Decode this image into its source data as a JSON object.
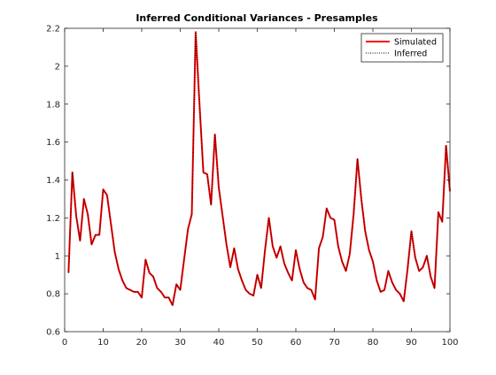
{
  "chart_data": {
    "type": "line",
    "title": "Inferred Conditional Variances - Presamples",
    "xlabel": "",
    "ylabel": "",
    "xlim": [
      0,
      100
    ],
    "ylim": [
      0.6,
      2.2
    ],
    "xticks": [
      0,
      10,
      20,
      30,
      40,
      50,
      60,
      70,
      80,
      90,
      100
    ],
    "yticks": [
      0.6,
      0.8,
      1,
      1.2,
      1.4,
      1.6,
      1.8,
      2,
      2.2
    ],
    "xtick_labels": [
      "0",
      "10",
      "20",
      "30",
      "40",
      "50",
      "60",
      "70",
      "80",
      "90",
      "100"
    ],
    "ytick_labels": [
      "0.6",
      "0.8",
      "1",
      "1.2",
      "1.4",
      "1.6",
      "1.8",
      "2",
      "2.2"
    ],
    "grid": false,
    "legend_position": "top-right",
    "series": [
      {
        "name": "Simulated",
        "color": "#ff0000",
        "style": "solid",
        "x": [
          1,
          2,
          3,
          4,
          5,
          6,
          7,
          8,
          9,
          10,
          11,
          12,
          13,
          14,
          15,
          16,
          17,
          18,
          19,
          20,
          21,
          22,
          23,
          24,
          25,
          26,
          27,
          28,
          29,
          30,
          31,
          32,
          33,
          34,
          35,
          36,
          37,
          38,
          39,
          40,
          41,
          42,
          43,
          44,
          45,
          46,
          47,
          48,
          49,
          50,
          51,
          52,
          53,
          54,
          55,
          56,
          57,
          58,
          59,
          60,
          61,
          62,
          63,
          64,
          65,
          66,
          67,
          68,
          69,
          70,
          71,
          72,
          73,
          74,
          75,
          76,
          77,
          78,
          79,
          80,
          81,
          82,
          83,
          84,
          85,
          86,
          87,
          88,
          89,
          90,
          91,
          92,
          93,
          94,
          95,
          96,
          97,
          98,
          99,
          100
        ],
        "values": [
          0.91,
          1.44,
          1.21,
          1.08,
          1.3,
          1.22,
          1.06,
          1.11,
          1.11,
          1.35,
          1.32,
          1.17,
          1.02,
          0.93,
          0.87,
          0.83,
          0.82,
          0.81,
          0.81,
          0.78,
          0.98,
          0.91,
          0.89,
          0.83,
          0.81,
          0.78,
          0.78,
          0.74,
          0.85,
          0.82,
          0.98,
          1.14,
          1.22,
          2.18,
          1.8,
          1.44,
          1.43,
          1.27,
          1.64,
          1.36,
          1.21,
          1.06,
          0.94,
          1.04,
          0.93,
          0.87,
          0.82,
          0.8,
          0.79,
          0.9,
          0.83,
          1.03,
          1.2,
          1.05,
          0.99,
          1.05,
          0.96,
          0.91,
          0.87,
          1.03,
          0.93,
          0.86,
          0.83,
          0.82,
          0.77,
          1.04,
          1.1,
          1.25,
          1.2,
          1.19,
          1.05,
          0.97,
          0.92,
          1.01,
          1.22,
          1.51,
          1.3,
          1.13,
          1.03,
          0.97,
          0.87,
          0.81,
          0.82,
          0.92,
          0.86,
          0.82,
          0.8,
          0.76,
          0.93,
          1.13,
          0.99,
          0.92,
          0.94,
          1.0,
          0.89,
          0.83,
          1.23,
          1.18,
          1.58,
          1.34
        ]
      },
      {
        "name": "Inferred",
        "color": "#000000",
        "style": "dotted",
        "x": [
          1,
          2,
          3,
          4,
          5,
          6,
          7,
          8,
          9,
          10,
          11,
          12,
          13,
          14,
          15,
          16,
          17,
          18,
          19,
          20,
          21,
          22,
          23,
          24,
          25,
          26,
          27,
          28,
          29,
          30,
          31,
          32,
          33,
          34,
          35,
          36,
          37,
          38,
          39,
          40,
          41,
          42,
          43,
          44,
          45,
          46,
          47,
          48,
          49,
          50,
          51,
          52,
          53,
          54,
          55,
          56,
          57,
          58,
          59,
          60,
          61,
          62,
          63,
          64,
          65,
          66,
          67,
          68,
          69,
          70,
          71,
          72,
          73,
          74,
          75,
          76,
          77,
          78,
          79,
          80,
          81,
          82,
          83,
          84,
          85,
          86,
          87,
          88,
          89,
          90,
          91,
          92,
          93,
          94,
          95,
          96,
          97,
          98,
          99,
          100
        ],
        "values": [
          0.91,
          1.44,
          1.21,
          1.08,
          1.3,
          1.22,
          1.06,
          1.11,
          1.11,
          1.35,
          1.32,
          1.17,
          1.02,
          0.93,
          0.87,
          0.83,
          0.82,
          0.81,
          0.81,
          0.78,
          0.98,
          0.91,
          0.89,
          0.83,
          0.81,
          0.78,
          0.78,
          0.74,
          0.85,
          0.82,
          0.98,
          1.14,
          1.22,
          2.18,
          1.8,
          1.44,
          1.43,
          1.27,
          1.64,
          1.36,
          1.21,
          1.06,
          0.94,
          1.04,
          0.93,
          0.87,
          0.82,
          0.8,
          0.79,
          0.9,
          0.83,
          1.03,
          1.2,
          1.05,
          0.99,
          1.05,
          0.96,
          0.91,
          0.87,
          1.03,
          0.93,
          0.86,
          0.83,
          0.82,
          0.77,
          1.04,
          1.1,
          1.25,
          1.2,
          1.19,
          1.05,
          0.97,
          0.92,
          1.01,
          1.22,
          1.51,
          1.3,
          1.13,
          1.03,
          0.97,
          0.87,
          0.81,
          0.82,
          0.92,
          0.86,
          0.82,
          0.8,
          0.76,
          0.93,
          1.13,
          0.99,
          0.92,
          0.94,
          1.0,
          0.89,
          0.83,
          1.23,
          1.18,
          1.58,
          1.34
        ]
      }
    ]
  }
}
